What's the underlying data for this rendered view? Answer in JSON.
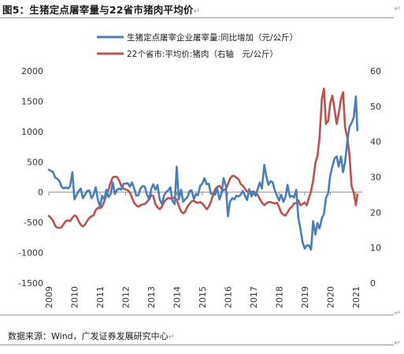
{
  "header": {
    "title": "图5：生猪定点屠宰量与22省市猪肉平均价",
    "para_mark": "↵"
  },
  "footer": {
    "source": "数据来源：Wind，广发证券发展研究中心",
    "para_mark": "↵"
  },
  "colors": {
    "slaughter_line": "#4a7ebb",
    "price_line": "#c0504d"
  },
  "chart_data": {
    "type": "line",
    "x_ticks": [
      "2009",
      "2010",
      "2011",
      "2012",
      "2013",
      "2014",
      "2015",
      "2016",
      "2017",
      "2018",
      "2019",
      "2020",
      "2021"
    ],
    "yleft": {
      "ticks": [
        "2000",
        "1500",
        "1000",
        "500",
        "0",
        "-500",
        "-1000",
        "-1500"
      ],
      "lim": [
        -1500,
        2000
      ]
    },
    "yright": {
      "ticks": [
        "60",
        "50",
        "40",
        "30",
        "20",
        "10",
        "0"
      ],
      "lim": [
        0,
        60
      ]
    },
    "grid": false,
    "legend_position": "top-center",
    "series": [
      {
        "name": "生猪定点屠宰企业屠宰量:同比增加（元/公斤）",
        "axis": "left",
        "color_key": "slaughter_line",
        "points": [
          [
            2009.0,
            370
          ],
          [
            2009.08,
            350
          ],
          [
            2009.17,
            330
          ],
          [
            2009.25,
            240
          ],
          [
            2009.33,
            220
          ],
          [
            2009.42,
            180
          ],
          [
            2009.5,
            90
          ],
          [
            2009.58,
            60
          ],
          [
            2009.67,
            80
          ],
          [
            2009.75,
            60
          ],
          [
            2009.83,
            100
          ],
          [
            2009.92,
            330
          ],
          [
            2010.0,
            -120
          ],
          [
            2010.08,
            -50
          ],
          [
            2010.17,
            20
          ],
          [
            2010.25,
            60
          ],
          [
            2010.33,
            -100
          ],
          [
            2010.42,
            -40
          ],
          [
            2010.5,
            20
          ],
          [
            2010.58,
            30
          ],
          [
            2010.67,
            -100
          ],
          [
            2010.75,
            -40
          ],
          [
            2010.83,
            80
          ],
          [
            2010.92,
            -130
          ],
          [
            2011.0,
            -240
          ],
          [
            2011.08,
            -60
          ],
          [
            2011.17,
            -120
          ],
          [
            2011.25,
            40
          ],
          [
            2011.33,
            -80
          ],
          [
            2011.42,
            -30
          ],
          [
            2011.5,
            160
          ],
          [
            2011.58,
            -30
          ],
          [
            2011.67,
            40
          ],
          [
            2011.75,
            60
          ],
          [
            2011.83,
            40
          ],
          [
            2011.92,
            140
          ],
          [
            2012.0,
            140
          ],
          [
            2012.08,
            150
          ],
          [
            2012.17,
            90
          ],
          [
            2012.25,
            160
          ],
          [
            2012.33,
            70
          ],
          [
            2012.42,
            -60
          ],
          [
            2012.5,
            -50
          ],
          [
            2012.58,
            60
          ],
          [
            2012.67,
            100
          ],
          [
            2012.75,
            90
          ],
          [
            2012.83,
            -30
          ],
          [
            2012.92,
            -120
          ],
          [
            2013.0,
            50
          ],
          [
            2013.08,
            130
          ],
          [
            2013.17,
            40
          ],
          [
            2013.25,
            120
          ],
          [
            2013.33,
            -120
          ],
          [
            2013.42,
            -200
          ],
          [
            2013.5,
            -60
          ],
          [
            2013.58,
            0
          ],
          [
            2013.67,
            30
          ],
          [
            2013.75,
            80
          ],
          [
            2013.83,
            -140
          ],
          [
            2013.92,
            -200
          ],
          [
            2014.0,
            420
          ],
          [
            2014.08,
            -120
          ],
          [
            2014.17,
            40
          ],
          [
            2014.25,
            -160
          ],
          [
            2014.33,
            -120
          ],
          [
            2014.42,
            -80
          ],
          [
            2014.5,
            20
          ],
          [
            2014.58,
            30
          ],
          [
            2014.67,
            -110
          ],
          [
            2014.75,
            -30
          ],
          [
            2014.83,
            -50
          ],
          [
            2014.92,
            110
          ],
          [
            2015.0,
            140
          ],
          [
            2015.08,
            230
          ],
          [
            2015.17,
            130
          ],
          [
            2015.25,
            140
          ],
          [
            2015.33,
            -20
          ],
          [
            2015.42,
            -40
          ],
          [
            2015.5,
            -40
          ],
          [
            2015.58,
            60
          ],
          [
            2015.67,
            -120
          ],
          [
            2015.75,
            -20
          ],
          [
            2015.83,
            230
          ],
          [
            2015.92,
            100
          ],
          [
            2016.0,
            -400
          ],
          [
            2016.08,
            -160
          ],
          [
            2016.17,
            -100
          ],
          [
            2016.25,
            -120
          ],
          [
            2016.33,
            -60
          ],
          [
            2016.42,
            -70
          ],
          [
            2016.5,
            -40
          ],
          [
            2016.58,
            20
          ],
          [
            2016.67,
            -60
          ],
          [
            2016.75,
            -130
          ],
          [
            2016.83,
            50
          ],
          [
            2016.92,
            -70
          ],
          [
            2017.0,
            10
          ],
          [
            2017.08,
            -60
          ],
          [
            2017.17,
            60
          ],
          [
            2017.25,
            160
          ],
          [
            2017.33,
            60
          ],
          [
            2017.42,
            450
          ],
          [
            2017.5,
            260
          ],
          [
            2017.58,
            120
          ],
          [
            2017.67,
            180
          ],
          [
            2017.75,
            160
          ],
          [
            2017.83,
            30
          ],
          [
            2017.92,
            -60
          ],
          [
            2018.0,
            -140
          ],
          [
            2018.08,
            -40
          ],
          [
            2018.17,
            -160
          ],
          [
            2018.25,
            -80
          ],
          [
            2018.33,
            120
          ],
          [
            2018.42,
            -80
          ],
          [
            2018.5,
            -60
          ],
          [
            2018.58,
            -90
          ],
          [
            2018.67,
            40
          ],
          [
            2018.75,
            -420
          ],
          [
            2018.83,
            -600
          ],
          [
            2018.92,
            -830
          ],
          [
            2019.0,
            -930
          ],
          [
            2019.08,
            -880
          ],
          [
            2019.17,
            -880
          ],
          [
            2019.25,
            -950
          ],
          [
            2019.33,
            -480
          ],
          [
            2019.42,
            -700
          ],
          [
            2019.5,
            -510
          ],
          [
            2019.58,
            -600
          ],
          [
            2019.67,
            -430
          ],
          [
            2019.75,
            -360
          ],
          [
            2019.83,
            -100
          ],
          [
            2019.92,
            -10
          ],
          [
            2020.0,
            280
          ],
          [
            2020.08,
            420
          ],
          [
            2020.17,
            560
          ],
          [
            2020.25,
            590
          ],
          [
            2020.33,
            420
          ],
          [
            2020.42,
            590
          ],
          [
            2020.5,
            330
          ],
          [
            2020.58,
            500
          ],
          [
            2020.67,
            860
          ],
          [
            2020.75,
            1080
          ],
          [
            2020.83,
            1140
          ],
          [
            2020.92,
            1240
          ],
          [
            2021.0,
            1580
          ],
          [
            2021.06,
            1020
          ]
        ]
      },
      {
        "name": "22个省市:平均价:猪肉（右轴　元/公斤）",
        "axis": "right",
        "color_key": "price_line",
        "points": [
          [
            2009.0,
            19.0
          ],
          [
            2009.08,
            18.4
          ],
          [
            2009.17,
            17.6
          ],
          [
            2009.25,
            16.2
          ],
          [
            2009.33,
            15.7
          ],
          [
            2009.42,
            15.6
          ],
          [
            2009.5,
            15.8
          ],
          [
            2009.58,
            16.7
          ],
          [
            2009.67,
            17.6
          ],
          [
            2009.75,
            17.7
          ],
          [
            2009.83,
            17.5
          ],
          [
            2009.92,
            18.5
          ],
          [
            2010.0,
            19.1
          ],
          [
            2010.08,
            18.9
          ],
          [
            2010.17,
            17.4
          ],
          [
            2010.25,
            16.5
          ],
          [
            2010.33,
            16.0
          ],
          [
            2010.42,
            16.6
          ],
          [
            2010.5,
            17.6
          ],
          [
            2010.58,
            18.4
          ],
          [
            2010.67,
            18.9
          ],
          [
            2010.75,
            19.2
          ],
          [
            2010.83,
            20.6
          ],
          [
            2010.92,
            21.3
          ],
          [
            2011.0,
            21.2
          ],
          [
            2011.08,
            21.6
          ],
          [
            2011.17,
            23.2
          ],
          [
            2011.25,
            25.0
          ],
          [
            2011.33,
            26.4
          ],
          [
            2011.42,
            28.5
          ],
          [
            2011.5,
            29.9
          ],
          [
            2011.58,
            30.1
          ],
          [
            2011.67,
            30.0
          ],
          [
            2011.75,
            29.0
          ],
          [
            2011.83,
            27.5
          ],
          [
            2011.92,
            26.7
          ],
          [
            2012.0,
            26.5
          ],
          [
            2012.08,
            26.3
          ],
          [
            2012.17,
            25.6
          ],
          [
            2012.25,
            24.2
          ],
          [
            2012.33,
            22.7
          ],
          [
            2012.42,
            22.0
          ],
          [
            2012.5,
            21.6
          ],
          [
            2012.58,
            22.0
          ],
          [
            2012.67,
            22.3
          ],
          [
            2012.75,
            22.3
          ],
          [
            2012.83,
            22.9
          ],
          [
            2012.92,
            23.7
          ],
          [
            2013.0,
            24.9
          ],
          [
            2013.08,
            24.6
          ],
          [
            2013.17,
            22.3
          ],
          [
            2013.25,
            21.4
          ],
          [
            2013.33,
            20.9
          ],
          [
            2013.42,
            21.6
          ],
          [
            2013.5,
            22.9
          ],
          [
            2013.58,
            23.6
          ],
          [
            2013.67,
            24.1
          ],
          [
            2013.75,
            23.9
          ],
          [
            2013.83,
            23.9
          ],
          [
            2013.92,
            24.3
          ],
          [
            2014.0,
            23.5
          ],
          [
            2014.08,
            21.9
          ],
          [
            2014.17,
            20.2
          ],
          [
            2014.25,
            19.7
          ],
          [
            2014.33,
            20.2
          ],
          [
            2014.42,
            21.7
          ],
          [
            2014.5,
            22.4
          ],
          [
            2014.58,
            23.1
          ],
          [
            2014.67,
            23.3
          ],
          [
            2014.75,
            22.8
          ],
          [
            2014.83,
            22.7
          ],
          [
            2014.92,
            22.9
          ],
          [
            2015.0,
            22.5
          ],
          [
            2015.08,
            21.8
          ],
          [
            2015.17,
            20.9
          ],
          [
            2015.25,
            21.6
          ],
          [
            2015.33,
            23.0
          ],
          [
            2015.42,
            24.9
          ],
          [
            2015.5,
            26.5
          ],
          [
            2015.58,
            27.2
          ],
          [
            2015.67,
            27.5
          ],
          [
            2015.75,
            26.7
          ],
          [
            2015.83,
            26.2
          ],
          [
            2015.92,
            26.6
          ],
          [
            2016.0,
            27.9
          ],
          [
            2016.08,
            29.5
          ],
          [
            2016.17,
            30.3
          ],
          [
            2016.25,
            30.3
          ],
          [
            2016.33,
            29.8
          ],
          [
            2016.42,
            29.3
          ],
          [
            2016.5,
            28.0
          ],
          [
            2016.58,
            27.6
          ],
          [
            2016.67,
            26.6
          ],
          [
            2016.75,
            25.9
          ],
          [
            2016.83,
            25.7
          ],
          [
            2016.92,
            25.8
          ],
          [
            2017.0,
            25.9
          ],
          [
            2017.08,
            25.6
          ],
          [
            2017.17,
            24.9
          ],
          [
            2017.25,
            23.7
          ],
          [
            2017.33,
            22.8
          ],
          [
            2017.42,
            22.0
          ],
          [
            2017.5,
            22.5
          ],
          [
            2017.58,
            22.9
          ],
          [
            2017.67,
            22.9
          ],
          [
            2017.75,
            22.7
          ],
          [
            2017.83,
            22.5
          ],
          [
            2017.92,
            22.7
          ],
          [
            2018.0,
            21.5
          ],
          [
            2018.08,
            19.9
          ],
          [
            2018.17,
            19.3
          ],
          [
            2018.25,
            19.1
          ],
          [
            2018.33,
            20.0
          ],
          [
            2018.42,
            21.1
          ],
          [
            2018.5,
            21.6
          ],
          [
            2018.58,
            22.5
          ],
          [
            2018.67,
            22.6
          ],
          [
            2018.75,
            23.4
          ],
          [
            2018.83,
            22.0
          ],
          [
            2018.92,
            22.4
          ],
          [
            2019.0,
            22.8
          ],
          [
            2019.08,
            22.0
          ],
          [
            2019.17,
            24.2
          ],
          [
            2019.25,
            26.0
          ],
          [
            2019.33,
            29.0
          ],
          [
            2019.42,
            34.0
          ],
          [
            2019.5,
            36.0
          ],
          [
            2019.58,
            41.0
          ],
          [
            2019.67,
            52.0
          ],
          [
            2019.75,
            55.0
          ],
          [
            2019.83,
            45.0
          ],
          [
            2019.92,
            46.0
          ],
          [
            2020.0,
            51.0
          ],
          [
            2020.08,
            53.0
          ],
          [
            2020.17,
            49.0
          ],
          [
            2020.25,
            45.0
          ],
          [
            2020.33,
            48.0
          ],
          [
            2020.42,
            52.0
          ],
          [
            2020.5,
            54.0
          ],
          [
            2020.58,
            44.0
          ],
          [
            2020.67,
            41.0
          ],
          [
            2020.75,
            36.0
          ],
          [
            2020.83,
            27.5
          ],
          [
            2020.92,
            25.5
          ],
          [
            2021.0,
            22.0
          ],
          [
            2021.06,
            25.0
          ]
        ]
      }
    ]
  }
}
